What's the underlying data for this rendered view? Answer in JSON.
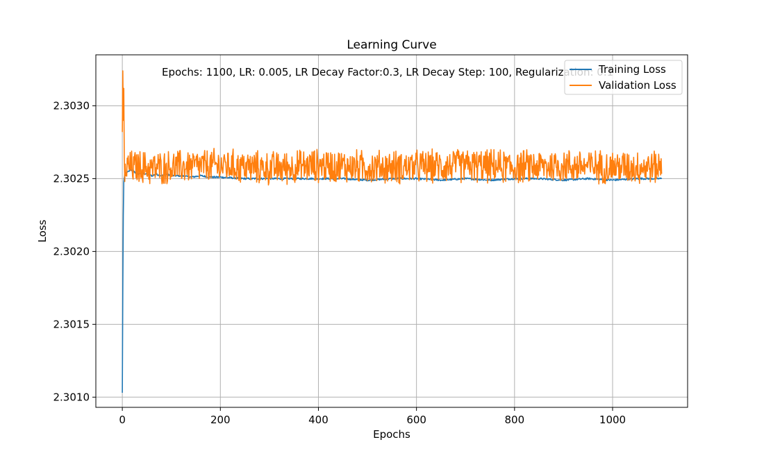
{
  "chart_data": {
    "type": "line",
    "title": "Learning Curve",
    "xlabel": "Epochs",
    "ylabel": "Loss",
    "annotation": "Epochs: 1100, LR: 0.005, LR Decay Factor:0.3, LR Decay Step: 100, Regularization: 0.1",
    "xlim": [
      -54,
      1153
    ],
    "ylim": [
      2.30093,
      2.30335
    ],
    "x_ticks": [
      0,
      200,
      400,
      600,
      800,
      1000
    ],
    "x_tick_labels": [
      "0",
      "200",
      "400",
      "600",
      "800",
      "1000"
    ],
    "y_ticks": [
      2.301,
      2.3015,
      2.302,
      2.3025,
      2.303
    ],
    "y_tick_labels": [
      "2.3010",
      "2.3015",
      "2.3020",
      "2.3025",
      "2.3030"
    ],
    "grid": true,
    "legend_position": "top-right",
    "series": [
      {
        "name": "Training Loss",
        "color": "#1f77b4",
        "x": [
          0,
          1,
          2,
          3,
          5,
          8,
          12,
          20,
          30,
          40,
          50,
          60,
          70,
          80,
          90,
          100,
          120,
          140,
          160,
          180,
          200,
          250,
          300,
          350,
          400,
          450,
          500,
          550,
          600,
          650,
          700,
          750,
          800,
          850,
          900,
          950,
          1000,
          1050,
          1100
        ],
        "y": [
          2.30103,
          2.30175,
          2.30225,
          2.30248,
          2.30253,
          2.30254,
          2.30255,
          2.30256,
          2.30253,
          2.30254,
          2.30253,
          2.30252,
          2.30253,
          2.30252,
          2.30253,
          2.30252,
          2.30252,
          2.30251,
          2.30252,
          2.30251,
          2.30251,
          2.3025,
          2.3025,
          2.3025,
          2.3025,
          2.3025,
          2.30249,
          2.3025,
          2.3025,
          2.30249,
          2.3025,
          2.30249,
          2.3025,
          2.3025,
          2.30249,
          2.3025,
          2.30249,
          2.3025,
          2.3025
        ]
      },
      {
        "name": "Validation Loss",
        "color": "#ff7f0e",
        "x": [
          0,
          1,
          2,
          3,
          4,
          5,
          6,
          8,
          10,
          20,
          40,
          60,
          100,
          200,
          300,
          400,
          500,
          600,
          700,
          800,
          900,
          1000,
          1100
        ],
        "y": [
          2.30282,
          2.30324,
          2.3029,
          2.30312,
          2.30265,
          2.30248,
          2.3026,
          2.30255,
          2.30258,
          2.30258,
          2.30258,
          2.30257,
          2.30258,
          2.30259,
          2.30257,
          2.30259,
          2.30258,
          2.30258,
          2.30259,
          2.30258,
          2.30259,
          2.30258,
          2.30258
        ],
        "noise_amplitude": 0.00013
      }
    ]
  }
}
